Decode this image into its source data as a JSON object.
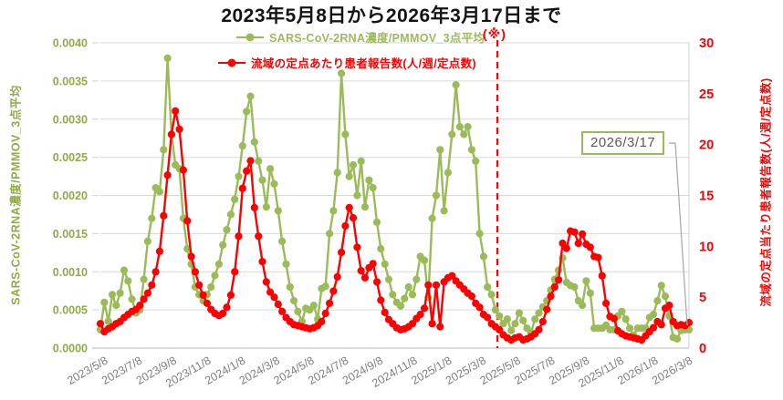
{
  "title": "2023年5月8日から2026年3月17日まで",
  "legend": [
    {
      "id": "rna",
      "label": "SARS-CoV-2RNA濃度/PMMOV_3点平均",
      "color": "#9BBB59"
    },
    {
      "id": "patients",
      "label": "流域の定点あたり患者報告数(人/週/定点数)",
      "color": "#FF0000"
    }
  ],
  "note_marker": "(※)",
  "annotation": {
    "label": "2026/3/17",
    "border_color": "#9BBB59",
    "text_color": "#595959"
  },
  "chart_data": {
    "type": "line",
    "title": "2023年5月8日から2026年3月17日まで",
    "sampling": "weekly",
    "x_range_labels": [
      "2023/5/8",
      "2026/3/17"
    ],
    "x_tick_labels": [
      "2023/5/8",
      "2023/7/8",
      "2023/9/8",
      "2023/11/8",
      "2024/1/8",
      "2024/3/8",
      "2024/5/8",
      "2024/7/8",
      "2024/9/8",
      "2024/11/8",
      "2025/1/8",
      "2025/3/8",
      "2025/5/8",
      "2025/7/8",
      "2025/9/8",
      "2025/11/8",
      "2026/1/8",
      "2026/3/8"
    ],
    "x_tick_color": "#7f7f7f",
    "left_axis_label": "SARS-CoV-2RNA濃度/PMMOV_3点平均",
    "right_axis_label": "流域の定点当たり患者報告数(人/週/定点数)",
    "left_ticks": [
      "0.0000",
      "0.0005",
      "0.0010",
      "0.0015",
      "0.0020",
      "0.0025",
      "0.0030",
      "0.0035",
      "0.0040"
    ],
    "right_ticks": [
      "0",
      "5",
      "10",
      "15",
      "20",
      "25",
      "30"
    ],
    "left_ylim": [
      0,
      0.004
    ],
    "right_ylim": [
      0,
      30
    ],
    "left_axis_color": "#8FAA49",
    "right_axis_color": "#FF0000",
    "grid_color": "#d9d9d9",
    "axis_line_color": "#c6c6c6",
    "note_line": {
      "label": "(※)",
      "position_week": 100.5,
      "color": "#FF0000"
    },
    "legend_position": "top",
    "grid": true,
    "series": [
      {
        "slug": "rna",
        "name": "SARS-CoV-2RNA濃度/PMMOV_3点平均",
        "axis": "left",
        "color": "#9BBB59",
        "values": [
          0.00024,
          0.0006,
          0.00035,
          0.0007,
          0.00056,
          0.00072,
          0.00102,
          0.00088,
          0.00064,
          0.00046,
          0.0005,
          0.0009,
          0.0014,
          0.0017,
          0.0021,
          0.00205,
          0.0026,
          0.0038,
          0.0028,
          0.0024,
          0.00235,
          0.0017,
          0.0013,
          0.0011,
          0.0008,
          0.0007,
          0.00062,
          0.0007,
          0.0008,
          0.00095,
          0.0011,
          0.00135,
          0.00155,
          0.00175,
          0.00195,
          0.00225,
          0.00265,
          0.0031,
          0.0033,
          0.0027,
          0.00245,
          0.0022,
          0.00185,
          0.00235,
          0.00215,
          0.0018,
          0.0014,
          0.0011,
          0.0008,
          0.00062,
          0.00048,
          0.00035,
          0.00052,
          0.0005,
          0.00056,
          0.00038,
          0.00078,
          0.00081,
          0.0015,
          0.0018,
          0.0023,
          0.0036,
          0.0028,
          0.00225,
          0.0024,
          0.002,
          0.00245,
          0.00185,
          0.0022,
          0.0021,
          0.00165,
          0.0013,
          0.0011,
          0.0009,
          0.0007,
          0.0006,
          0.00055,
          0.00065,
          0.0008,
          0.0007,
          0.0009,
          0.0012,
          0.00115,
          0.00066,
          0.0017,
          0.002,
          0.0026,
          0.0018,
          0.0023,
          0.0028,
          0.00345,
          0.0029,
          0.0028,
          0.0029,
          0.0026,
          0.00245,
          0.0015,
          0.0012,
          0.0008,
          0.0007,
          0.0005,
          0.00042,
          0.00032,
          0.00038,
          0.00023,
          0.00032,
          0.00046,
          0.00036,
          0.00026,
          0.0002,
          0.00038,
          0.00046,
          0.00054,
          0.00062,
          0.00076,
          0.0009,
          0.00102,
          0.00118,
          0.00086,
          0.00082,
          0.0008,
          0.00062,
          0.00056,
          0.00088,
          0.00072,
          0.00026,
          0.00026,
          0.00026,
          0.0003,
          0.00024,
          0.00024,
          0.00042,
          0.00048,
          0.00038,
          0.00026,
          0.00017,
          0.00026,
          0.00026,
          0.00026,
          0.0004,
          0.00044,
          0.00062,
          0.00082,
          0.00068,
          0.00042,
          0.00014,
          0.00012,
          0.00023,
          0.00024,
          0.00024
        ]
      },
      {
        "slug": "patients",
        "name": "流域の定点あたり患者報告数(人/週/定点数)",
        "axis": "right",
        "color": "#FF0000",
        "values": [
          2.4,
          1.6,
          1.9,
          2.1,
          2.4,
          2.6,
          3.0,
          3.3,
          3.6,
          3.8,
          4.2,
          4.8,
          5.4,
          6.2,
          7.5,
          9.5,
          13.0,
          17.0,
          21.0,
          23.3,
          21.5,
          17.5,
          12.5,
          9.0,
          7.5,
          6.2,
          5.2,
          4.4,
          3.8,
          3.4,
          3.2,
          3.4,
          4.0,
          5.2,
          7.5,
          11.0,
          15.7,
          17.4,
          18.4,
          13.8,
          11.0,
          8.5,
          6.5,
          5.5,
          5.0,
          4.3,
          3.6,
          3.0,
          2.6,
          2.3,
          2.2,
          2.1,
          2.0,
          1.9,
          2.0,
          2.2,
          2.6,
          3.4,
          4.4,
          5.6,
          7.0,
          9.4,
          12.0,
          13.8,
          12.8,
          9.9,
          7.6,
          6.9,
          7.9,
          8.3,
          6.5,
          4.7,
          3.5,
          2.8,
          2.4,
          2.0,
          1.8,
          1.9,
          2.1,
          2.4,
          2.9,
          3.3,
          3.9,
          6.2,
          2.4,
          6.2,
          2.1,
          6.5,
          6.9,
          7.1,
          6.6,
          6.2,
          5.8,
          5.4,
          5.1,
          4.4,
          4.0,
          3.3,
          3.0,
          2.4,
          2.1,
          1.8,
          1.3,
          1.0,
          0.8,
          1.0,
          1.1,
          0.8,
          0.9,
          1.1,
          1.4,
          1.8,
          2.6,
          3.8,
          5.1,
          6.0,
          6.7,
          10.3,
          9.8,
          11.5,
          11.4,
          10.3,
          11.2,
          10.2,
          9.9,
          9.0,
          8.9,
          7.1,
          4.4,
          3.1,
          2.9,
          1.7,
          1.4,
          1.2,
          1.1,
          1.0,
          0.9,
          0.8,
          1.2,
          1.6,
          2.0,
          2.6,
          2.3,
          3.9,
          4.2,
          2.6,
          2.2,
          2.3,
          2.2,
          2.5
        ]
      }
    ]
  }
}
